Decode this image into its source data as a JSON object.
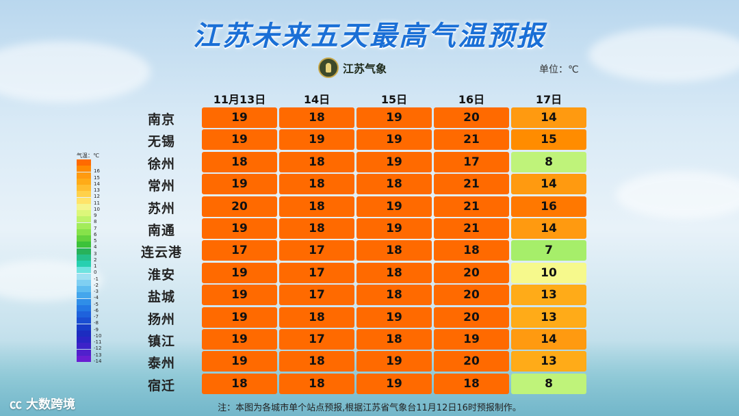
{
  "title": "江苏未来五天最高气温预报",
  "logo_text": "江苏气象",
  "unit": "单位：℃",
  "columns": [
    "11月13日",
    "14日",
    "15日",
    "16日",
    "17日"
  ],
  "rows": [
    {
      "city": "南京",
      "values": [
        19,
        18,
        19,
        20,
        14
      ]
    },
    {
      "city": "无锡",
      "values": [
        19,
        19,
        19,
        21,
        15
      ]
    },
    {
      "city": "徐州",
      "values": [
        18,
        18,
        19,
        17,
        8
      ]
    },
    {
      "city": "常州",
      "values": [
        19,
        18,
        18,
        21,
        14
      ]
    },
    {
      "city": "苏州",
      "values": [
        20,
        18,
        19,
        21,
        16
      ]
    },
    {
      "city": "南通",
      "values": [
        19,
        18,
        19,
        21,
        14
      ]
    },
    {
      "city": "连云港",
      "values": [
        17,
        17,
        18,
        18,
        7
      ]
    },
    {
      "city": "淮安",
      "values": [
        19,
        17,
        18,
        20,
        10
      ]
    },
    {
      "city": "盐城",
      "values": [
        19,
        17,
        18,
        20,
        13
      ]
    },
    {
      "city": "扬州",
      "values": [
        19,
        18,
        19,
        20,
        13
      ]
    },
    {
      "city": "镇江",
      "values": [
        19,
        17,
        18,
        19,
        14
      ]
    },
    {
      "city": "泰州",
      "values": [
        19,
        18,
        19,
        20,
        13
      ]
    },
    {
      "city": "宿迁",
      "values": [
        18,
        18,
        19,
        18,
        8
      ]
    }
  ],
  "legend": {
    "title": "气温：℃",
    "entries": [
      {
        "label": "",
        "color": "#ff6a00"
      },
      {
        "label": "16",
        "color": "#ff8a00"
      },
      {
        "label": "15",
        "color": "#ff9a10"
      },
      {
        "label": "14",
        "color": "#ffab18"
      },
      {
        "label": "13",
        "color": "#ffbe30"
      },
      {
        "label": "12",
        "color": "#ffd14a"
      },
      {
        "label": "11",
        "color": "#ffe36a"
      },
      {
        "label": "10",
        "color": "#f4f58e"
      },
      {
        "label": "9",
        "color": "#dcf77a"
      },
      {
        "label": "8",
        "color": "#bff36a"
      },
      {
        "label": "7",
        "color": "#a3ec5a"
      },
      {
        "label": "6",
        "color": "#86e24a"
      },
      {
        "label": "5",
        "color": "#62d23e"
      },
      {
        "label": "4",
        "color": "#3cc23a"
      },
      {
        "label": "3",
        "color": "#27b25a"
      },
      {
        "label": "2",
        "color": "#25c08a"
      },
      {
        "label": "1",
        "color": "#27d0b0"
      },
      {
        "label": "0",
        "color": "#6fe3e0"
      },
      {
        "label": "-1",
        "color": "#9fe0f2"
      },
      {
        "label": "-2",
        "color": "#7fcff2"
      },
      {
        "label": "-3",
        "color": "#5fbcf0"
      },
      {
        "label": "-4",
        "color": "#44a6ec"
      },
      {
        "label": "-5",
        "color": "#2f8ee8"
      },
      {
        "label": "-6",
        "color": "#2478e4"
      },
      {
        "label": "-7",
        "color": "#1e62dc"
      },
      {
        "label": "-8",
        "color": "#1a4ed2"
      },
      {
        "label": "-9",
        "color": "#183cc8"
      },
      {
        "label": "-10",
        "color": "#1c2cc0"
      },
      {
        "label": "-11",
        "color": "#2a24c4"
      },
      {
        "label": "-12",
        "color": "#3c22c8"
      },
      {
        "label": "-13",
        "color": "#5020cc"
      },
      {
        "label": "-14",
        "color": "#6a1ed2"
      }
    ]
  },
  "note": "注：本图为各城市单个站点预报,根据江苏省气象台11月12日16时预报制作。",
  "watermark": "大数跨境",
  "watermark_icon": "brand-logo-icon"
}
